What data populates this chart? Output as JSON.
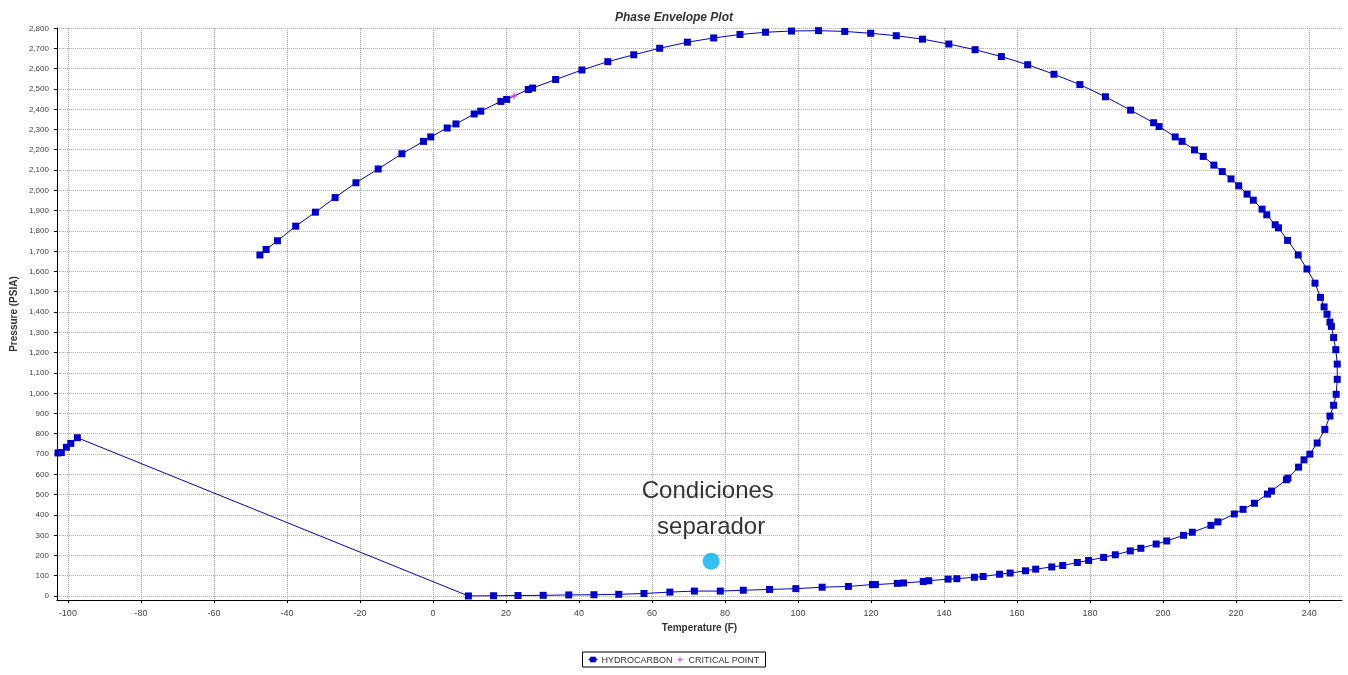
{
  "chart_data": {
    "type": "line",
    "title": "Phase Envelope Plot",
    "xlabel": "Temperature (F)",
    "ylabel": "Pressure (PSIA)",
    "xlim": [
      -103,
      249
    ],
    "ylim": [
      -20,
      2800
    ],
    "xticks": [
      -100,
      -80,
      -60,
      -40,
      -20,
      0,
      20,
      40,
      60,
      80,
      100,
      120,
      140,
      160,
      180,
      200,
      220,
      240
    ],
    "yticks": [
      0,
      100,
      200,
      300,
      400,
      500,
      600,
      700,
      800,
      900,
      {
        "value": 1000,
        "label": "1,000"
      },
      {
        "value": 1100,
        "label": "1,100"
      },
      {
        "value": 1200,
        "label": "1,200"
      },
      {
        "value": 1300,
        "label": "1,300"
      },
      {
        "value": 1400,
        "label": "1,400"
      },
      {
        "value": 1500,
        "label": "1,500"
      },
      {
        "value": 1600,
        "label": "1,600"
      },
      {
        "value": 1700,
        "label": "1,700"
      },
      {
        "value": 1800,
        "label": "1,800"
      },
      {
        "value": 1900,
        "label": "1,900"
      },
      {
        "value": 2000,
        "label": "2,000"
      },
      {
        "value": 2100,
        "label": "2,100"
      },
      {
        "value": 2200,
        "label": "2,200"
      },
      {
        "value": 2300,
        "label": "2,300"
      },
      {
        "value": 2400,
        "label": "2,400"
      },
      {
        "value": 2500,
        "label": "2,500"
      },
      {
        "value": 2600,
        "label": "2,600"
      },
      {
        "value": 2700,
        "label": "2,700"
      },
      {
        "value": 2800,
        "label": "2,800"
      }
    ],
    "grid": true,
    "legend": "bottom",
    "marker": "square",
    "line_style": "solid",
    "series": [
      {
        "name": "HYDROCARBON",
        "type": "line",
        "color": "#0000cc",
        "x": [
          -47.4,
          -45.7,
          -42.6,
          -37.6,
          -32.2,
          -26.8,
          -21.1,
          -15.0,
          -8.5,
          -2.6,
          -0.6,
          3.9,
          6.3,
          11.3,
          13.1,
          18.6,
          20.2,
          26.1,
          27.3,
          33.6,
          40.8,
          47.9,
          55.0,
          62.1,
          69.7,
          76.9,
          84.1,
          91.1,
          98.2,
          105.6,
          112.8,
          119.9,
          126.9,
          134.1,
          141.3,
          148.5,
          155.7,
          162.9,
          170.1,
          177.2,
          184.2,
          191.1,
          197.4,
          198.9,
          203.3,
          205.2,
          208.6,
          211.0,
          213.9,
          216.2,
          218.6,
          220.7,
          223.0,
          224.7,
          227.1,
          228.4,
          230.7,
          231.6,
          234.1,
          237.0,
          239.4,
          241.6,
          243.1,
          244.1,
          244.9,
          245.7,
          246.1,
          246.7,
          247.3,
          247.7,
          247.7,
          247.4,
          246.7,
          245.7,
          244.3,
          242.2,
          240.2,
          238.6,
          237.1,
          234.2,
          233.8,
          229.7,
          228.6,
          225.0,
          221.9,
          219.5,
          215.0,
          213.1,
          208.0,
          205.6,
          201.0,
          198.1,
          193.9,
          191.0,
          186.9,
          183.7,
          179.6,
          176.5,
          172.5,
          169.5,
          165.1,
          162.3,
          158.1,
          155.2,
          150.7,
          148.3,
          143.5,
          141.1,
          135.8,
          134.3,
          128.9,
          127.2,
          121.2,
          120.4,
          113.8,
          106.6,
          99.4,
          92.2,
          85.0,
          78.7,
          71.6,
          64.9,
          57.8,
          50.9,
          44.1,
          37.2,
          30.2,
          23.3,
          16.6,
          9.7,
          -97.4,
          -99.2,
          -100.4,
          -101.8,
          -102.7
        ],
        "values": [
          1681,
          1708,
          1751,
          1823,
          1892,
          1964,
          2037,
          2105,
          2180,
          2241,
          2263,
          2307,
          2327,
          2376,
          2390,
          2438,
          2448,
          2497,
          2504,
          2546,
          2593,
          2634,
          2668,
          2700,
          2730,
          2751,
          2768,
          2779,
          2785,
          2787,
          2783,
          2774,
          2762,
          2745,
          2721,
          2693,
          2659,
          2619,
          2572,
          2521,
          2461,
          2395,
          2333,
          2314,
          2263,
          2241,
          2199,
          2167,
          2124,
          2092,
          2056,
          2022,
          1981,
          1951,
          1907,
          1879,
          1830,
          1815,
          1753,
          1681,
          1612,
          1542,
          1472,
          1425,
          1389,
          1350,
          1329,
          1274,
          1214,
          1143,
          1068,
          994,
          940,
          887,
          821,
          754,
          699,
          671,
          635,
          581,
          573,
          517,
          502,
          457,
          427,
          404,
          365,
          348,
          314,
          299,
          271,
          256,
          235,
          222,
          203,
          190,
          175,
          165,
          150,
          143,
          132,
          124,
          113,
          107,
          96,
          92,
          85,
          83,
          75,
          71,
          64,
          62,
          56,
          56,
          47,
          43,
          36,
          32,
          28,
          24,
          24,
          19,
          12,
          8,
          6,
          5,
          3,
          2,
          1,
          0,
          780,
          752,
          733,
          707,
          705
        ]
      },
      {
        "name": "CRITICAL POINT",
        "type": "scatter",
        "marker": "star",
        "color": "#e040e0",
        "x": [
          22.2
        ],
        "values": [
          2465
        ]
      },
      {
        "type": "scatter",
        "marker": "circle",
        "color": "#00b0f0",
        "x": [
          76.2
        ],
        "values": [
          171
        ]
      }
    ],
    "annotations": [
      {
        "text": "Condiciones separador",
        "x": 76.2,
        "y": 171
      }
    ]
  }
}
